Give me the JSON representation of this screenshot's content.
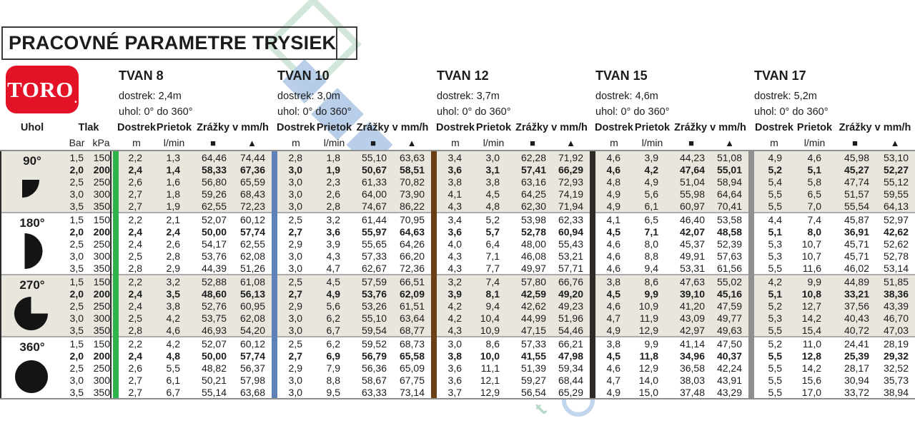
{
  "title": "PRACOVNÉ PARAMETRE TRYSIEK",
  "logo": {
    "text": "TORO",
    "dot": ".",
    "color": "#e31227"
  },
  "labels": {
    "uhol": "Uhol",
    "tlak": "Tlak",
    "bar": "Bar",
    "kpa": "kPa",
    "dostrek": "Dostrek",
    "prietok": "Prietok",
    "zrazky": "Zrážky v mm/h",
    "m": "m",
    "lmin": "l/min",
    "square": "■",
    "triangle": "▲"
  },
  "groups": [
    {
      "name": "TVAN 8",
      "dostrek": "dostrek: 2,4m",
      "uhol": "uhol: 0° do 360°",
      "bar_color": "#2fb34c"
    },
    {
      "name": "TVAN 10",
      "dostrek": "dostrek: 3,0m",
      "uhol": "uhol:  0° do 360°",
      "bar_color": "#5e82b8"
    },
    {
      "name": "TVAN 12",
      "dostrek": "dostrek: 3,7m",
      "uhol": "uhol:  0° do 360°",
      "bar_color": "#6b3f16"
    },
    {
      "name": "TVAN 15",
      "dostrek": "dostrek: 4,6m",
      "uhol": "uhol:  0° do 360°",
      "bar_color": "#2e2b27"
    },
    {
      "name": "TVAN 17",
      "dostrek": "dostrek: 5,2m",
      "uhol": "uhol:  0° do 360°",
      "bar_color": "#8f8f8f"
    }
  ],
  "pressures": [
    [
      "1,5",
      "150"
    ],
    [
      "2,0",
      "200"
    ],
    [
      "2,5",
      "250"
    ],
    [
      "3,0",
      "300"
    ],
    [
      "3,5",
      "350"
    ]
  ],
  "bold_row_index": 1,
  "blocks": [
    {
      "angle": "90°",
      "icon": "quarter-circle",
      "bg": "beige",
      "rows": [
        [
          "2,2",
          "1,3",
          "64,46",
          "74,44",
          "2,8",
          "1,8",
          "55,10",
          "63,63",
          "3,4",
          "3,0",
          "62,28",
          "71,92",
          "4,6",
          "3,9",
          "44,23",
          "51,08",
          "4,9",
          "4,6",
          "45,98",
          "53,10"
        ],
        [
          "2,4",
          "1,4",
          "58,33",
          "67,36",
          "3,0",
          "1,9",
          "50,67",
          "58,51",
          "3,6",
          "3,1",
          "57,41",
          "66,29",
          "4,6",
          "4,2",
          "47,64",
          "55,01",
          "5,2",
          "5,1",
          "45,27",
          "52,27"
        ],
        [
          "2,6",
          "1,6",
          "56,80",
          "65,59",
          "3,0",
          "2,3",
          "61,33",
          "70,82",
          "3,8",
          "3,8",
          "63,16",
          "72,93",
          "4,8",
          "4,9",
          "51,04",
          "58,94",
          "5,4",
          "5,8",
          "47,74",
          "55,12"
        ],
        [
          "2,7",
          "1,8",
          "59,26",
          "68,43",
          "3,0",
          "2,6",
          "64,00",
          "73,90",
          "4,1",
          "4,5",
          "64,25",
          "74,19",
          "4,9",
          "5,6",
          "55,98",
          "64,64",
          "5,5",
          "6,5",
          "51,57",
          "59,55"
        ],
        [
          "2,7",
          "1,9",
          "62,55",
          "72,23",
          "3,0",
          "2,8",
          "74,67",
          "86,22",
          "4,3",
          "4,8",
          "62,30",
          "71,94",
          "4,9",
          "6,1",
          "60,97",
          "70,41",
          "5,5",
          "7,0",
          "55,54",
          "64,13"
        ]
      ]
    },
    {
      "angle": "180°",
      "icon": "half-circle",
      "bg": "white",
      "rows": [
        [
          "2,2",
          "2,1",
          "52,07",
          "60,12",
          "2,5",
          "3,2",
          "61,44",
          "70,95",
          "3,4",
          "5,2",
          "53,98",
          "62,33",
          "4,1",
          "6,5",
          "46,40",
          "53,58",
          "4,4",
          "7,4",
          "45,87",
          "52,97"
        ],
        [
          "2,4",
          "2,4",
          "50,00",
          "57,74",
          "2,7",
          "3,6",
          "55,97",
          "64,63",
          "3,6",
          "5,7",
          "52,78",
          "60,94",
          "4,5",
          "7,1",
          "42,07",
          "48,58",
          "5,1",
          "8,0",
          "36,91",
          "42,62"
        ],
        [
          "2,4",
          "2,6",
          "54,17",
          "62,55",
          "2,9",
          "3,9",
          "55,65",
          "64,26",
          "4,0",
          "6,4",
          "48,00",
          "55,43",
          "4,6",
          "8,0",
          "45,37",
          "52,39",
          "5,3",
          "10,7",
          "45,71",
          "52,62"
        ],
        [
          "2,5",
          "2,8",
          "53,76",
          "62,08",
          "3,0",
          "4,3",
          "57,33",
          "66,20",
          "4,3",
          "7,1",
          "46,08",
          "53,21",
          "4,6",
          "8,8",
          "49,91",
          "57,63",
          "5,3",
          "10,7",
          "45,71",
          "52,78"
        ],
        [
          "2,8",
          "2,9",
          "44,39",
          "51,26",
          "3,0",
          "4,7",
          "62,67",
          "72,36",
          "4,3",
          "7,7",
          "49,97",
          "57,71",
          "4,6",
          "9,4",
          "53,31",
          "61,56",
          "5,5",
          "11,6",
          "46,02",
          "53,14"
        ]
      ]
    },
    {
      "angle": "270°",
      "icon": "three-quarter-circle",
      "bg": "beige",
      "rows": [
        [
          "2,2",
          "3,2",
          "52,88",
          "61,08",
          "2,5",
          "4,5",
          "57,59",
          "66,51",
          "3,2",
          "7,4",
          "57,80",
          "66,76",
          "3,8",
          "8,6",
          "47,63",
          "55,02",
          "4,2",
          "9,9",
          "44,89",
          "51,85"
        ],
        [
          "2,4",
          "3,5",
          "48,60",
          "56,13",
          "2,7",
          "4,9",
          "53,76",
          "62,09",
          "3,9",
          "8,1",
          "42,59",
          "49,20",
          "4,5",
          "9,9",
          "39,10",
          "45,16",
          "5,1",
          "10,8",
          "33,21",
          "38,36"
        ],
        [
          "2,4",
          "3,8",
          "52,76",
          "60,95",
          "2,9",
          "5,6",
          "53,26",
          "61,51",
          "4,2",
          "9,4",
          "42,62",
          "49,23",
          "4,6",
          "10,9",
          "41,20",
          "47,59",
          "5,2",
          "12,7",
          "37,56",
          "43,39"
        ],
        [
          "2,5",
          "4,2",
          "53,75",
          "62,08",
          "3,0",
          "6,2",
          "55,10",
          "63,64",
          "4,2",
          "10,4",
          "44,99",
          "51,96",
          "4,7",
          "11,9",
          "43,09",
          "49,77",
          "5,3",
          "14,2",
          "40,43",
          "46,70"
        ],
        [
          "2,8",
          "4,6",
          "46,93",
          "54,20",
          "3,0",
          "6,7",
          "59,54",
          "68,77",
          "4,3",
          "10,9",
          "47,15",
          "54,46",
          "4,9",
          "12,9",
          "42,97",
          "49,63",
          "5,5",
          "15,4",
          "40,72",
          "47,03"
        ]
      ]
    },
    {
      "angle": "360°",
      "icon": "full-circle",
      "bg": "white",
      "rows": [
        [
          "2,2",
          "4,2",
          "52,07",
          "60,12",
          "2,5",
          "6,2",
          "59,52",
          "68,73",
          "3,0",
          "8,6",
          "57,33",
          "66,21",
          "3,8",
          "9,9",
          "41,14",
          "47,50",
          "5,2",
          "11,0",
          "24,41",
          "28,19"
        ],
        [
          "2,4",
          "4,8",
          "50,00",
          "57,74",
          "2,7",
          "6,9",
          "56,79",
          "65,58",
          "3,8",
          "10,0",
          "41,55",
          "47,98",
          "4,5",
          "11,8",
          "34,96",
          "40,37",
          "5,5",
          "12,8",
          "25,39",
          "29,32"
        ],
        [
          "2,6",
          "5,5",
          "48,82",
          "56,37",
          "2,9",
          "7,9",
          "56,36",
          "65,09",
          "3,6",
          "11,1",
          "51,39",
          "59,34",
          "4,6",
          "12,9",
          "36,58",
          "42,24",
          "5,5",
          "14,2",
          "28,17",
          "32,52"
        ],
        [
          "2,7",
          "6,1",
          "50,21",
          "57,98",
          "3,0",
          "8,8",
          "58,67",
          "67,75",
          "3,6",
          "12,1",
          "59,27",
          "68,44",
          "4,7",
          "14,0",
          "38,03",
          "43,91",
          "5,5",
          "15,6",
          "30,94",
          "35,73"
        ],
        [
          "2,7",
          "6,7",
          "55,14",
          "63,68",
          "3,0",
          "9,5",
          "63,33",
          "73,14",
          "3,7",
          "12,9",
          "56,54",
          "65,29",
          "4,9",
          "15,0",
          "37,48",
          "43,29",
          "5,5",
          "17,0",
          "33,72",
          "38,94"
        ]
      ]
    }
  ],
  "watermark": {
    "trail_letters": [
      "O",
      "B",
      "C",
      "H",
      "O",
      "D",
      "N"
    ],
    "big_letters": [
      "M",
      "C"
    ],
    "bottom_letter": "t",
    "teal": "#cae3d3",
    "blue": "#b1c9e6"
  }
}
